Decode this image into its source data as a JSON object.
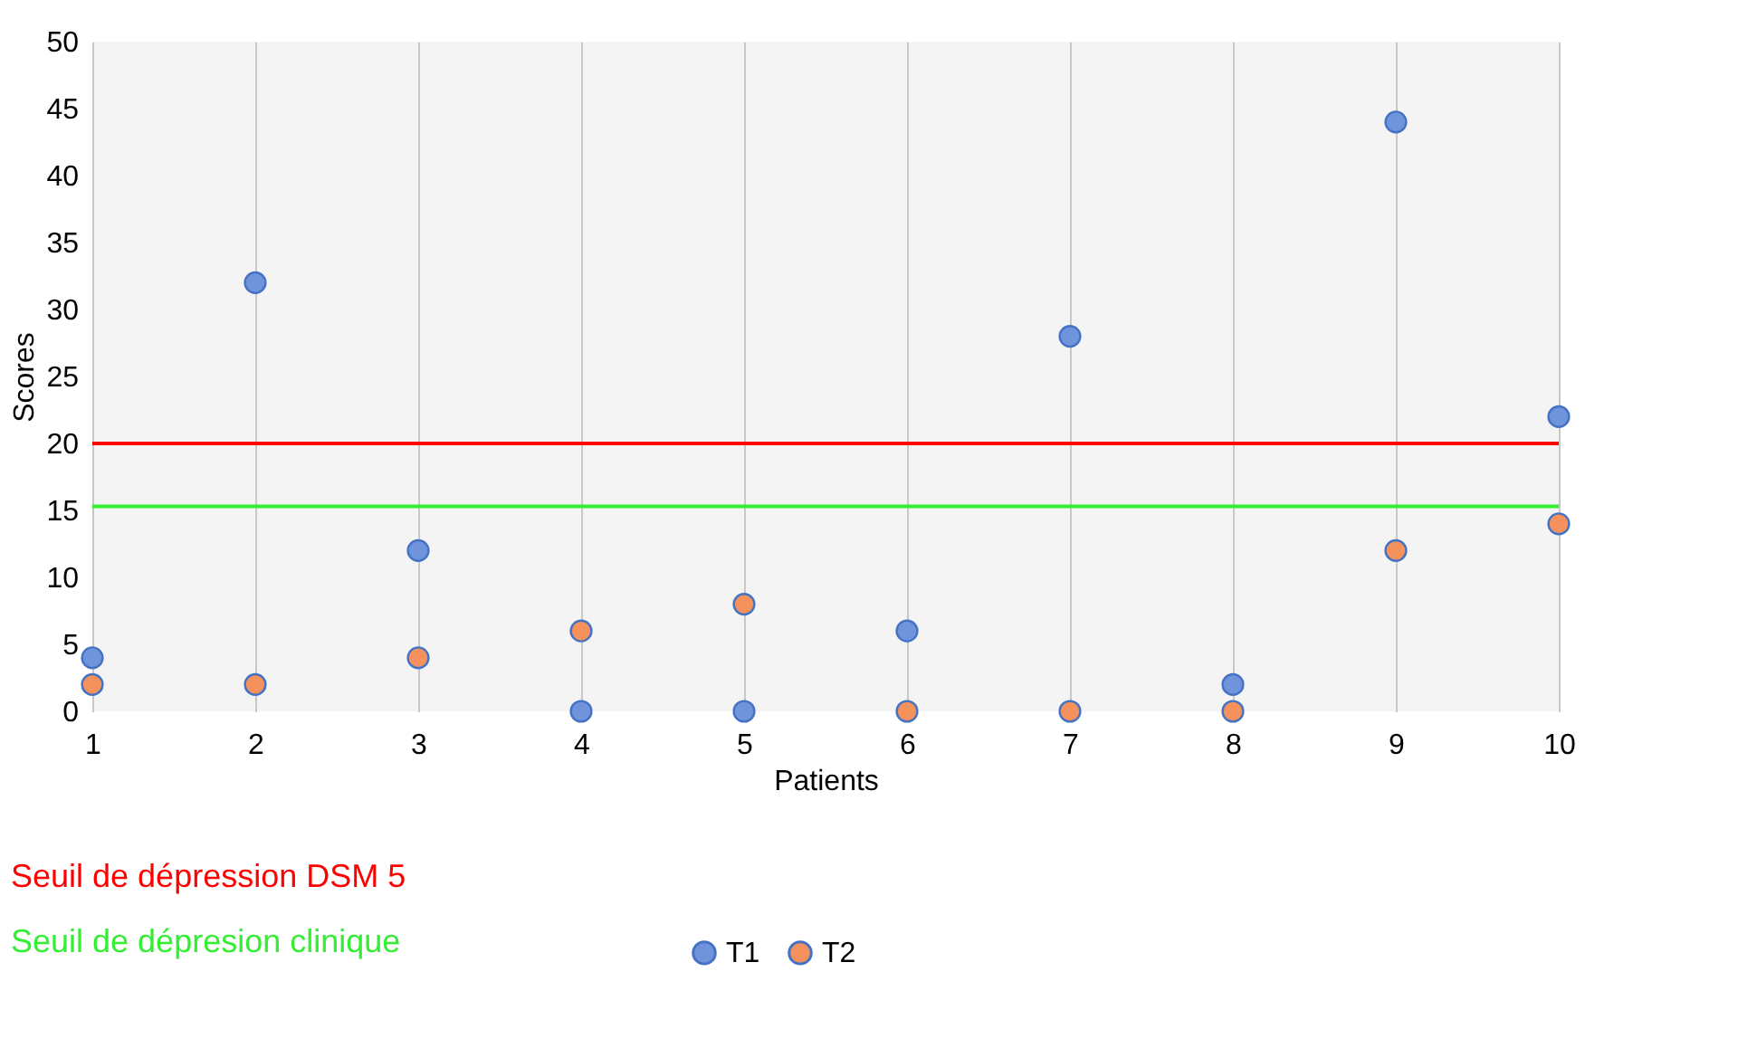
{
  "chart_data": {
    "type": "scatter",
    "xlabel": "Patients",
    "ylabel": "Scores",
    "x": [
      1,
      2,
      3,
      4,
      5,
      6,
      7,
      8,
      9,
      10
    ],
    "series": [
      {
        "name": "T1",
        "color": "#7094dc",
        "values": [
          4,
          32,
          12,
          0,
          0,
          6,
          28,
          2,
          44,
          22
        ]
      },
      {
        "name": "T2",
        "color": "#f4915c",
        "values": [
          2,
          2,
          4,
          6,
          8,
          0,
          0,
          0,
          12,
          14
        ]
      }
    ],
    "xlim": [
      1,
      10
    ],
    "xticks": [
      1,
      2,
      3,
      4,
      5,
      6,
      7,
      8,
      9,
      10
    ],
    "ylim": [
      0,
      50
    ],
    "yticks": [
      0,
      5,
      10,
      15,
      20,
      25,
      30,
      35,
      40,
      45,
      50
    ],
    "ref_lines": [
      {
        "axis": "y",
        "value": 20,
        "label": "Seuil de dépression DSM 5",
        "color": "#ff0000"
      },
      {
        "axis": "y",
        "value": 15.3,
        "label": "Seuil de dépresion clinique",
        "color": "#33ee33"
      }
    ],
    "grid": "x",
    "legend": "bottom",
    "marker": "circle"
  }
}
